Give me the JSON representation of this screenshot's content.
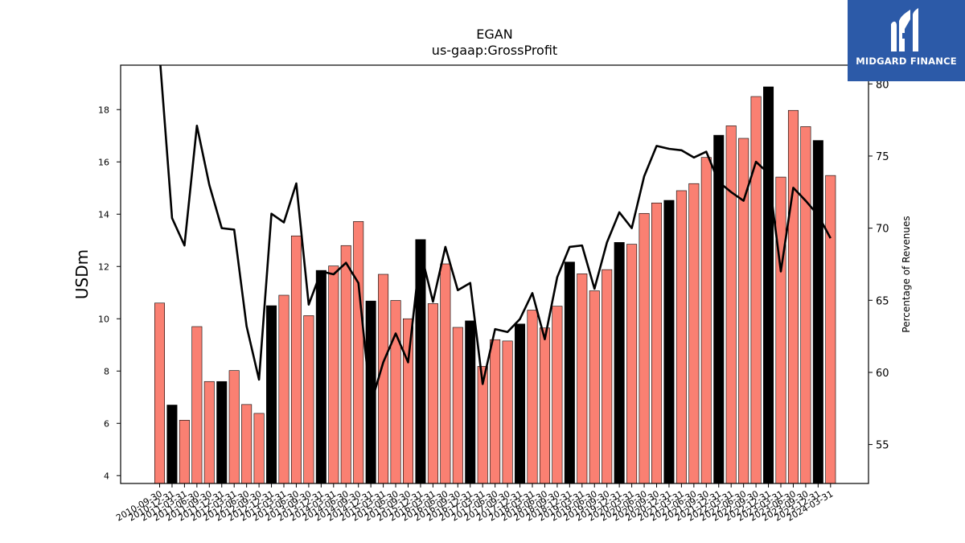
{
  "brand": {
    "name": "MIDGARD FINANCE",
    "icon": "midgard-m-logo-icon",
    "color": "#2c5aa8"
  },
  "chart_data": {
    "type": "bar",
    "title": "EGAN",
    "subtitle": "us-gaap:GrossProfit",
    "ylabel": "USDm",
    "y2label": "Percentage of Revenues",
    "ylim": [
      3.7,
      19.7
    ],
    "y2lim": [
      52.3,
      81.3
    ],
    "yticks": [
      4,
      6,
      8,
      10,
      12,
      14,
      16,
      18
    ],
    "y2ticks": [
      55,
      60,
      65,
      70,
      75,
      80
    ],
    "colors": {
      "quarter": "#fa8072",
      "year_end": "#000000",
      "line": "#000000"
    },
    "categories": [
      "2010-09-30",
      "2010-12-31",
      "2011-03-31",
      "2011-06-30",
      "2011-09-30",
      "2011-12-31",
      "2012-03-31",
      "2012-06-30",
      "2012-09-30",
      "2012-12-31",
      "2013-03-31",
      "2013-06-30",
      "2013-09-30",
      "2013-12-31",
      "2014-03-31",
      "2014-06-30",
      "2014-09-30",
      "2014-12-31",
      "2015-03-31",
      "2015-06-30",
      "2015-09-30",
      "2015-12-31",
      "2016-03-31",
      "2016-06-30",
      "2016-09-30",
      "2016-12-31",
      "2017-03-31",
      "2017-06-30",
      "2017-09-30",
      "2017-12-31",
      "2018-03-31",
      "2018-06-30",
      "2018-09-30",
      "2018-12-31",
      "2019-03-31",
      "2019-06-30",
      "2019-09-30",
      "2019-12-31",
      "2020-03-31",
      "2020-06-30",
      "2020-09-30",
      "2020-12-31",
      "2021-03-31",
      "2021-06-30",
      "2021-09-30",
      "2021-12-31",
      "2022-03-31",
      "2022-06-30",
      "2022-09-30",
      "2022-12-31",
      "2023-03-31",
      "2023-06-30",
      "2023-09-30",
      "2023-12-31",
      "2024-03-31"
    ],
    "year_end": [
      false,
      true,
      false,
      false,
      false,
      true,
      false,
      false,
      false,
      true,
      false,
      false,
      false,
      true,
      false,
      false,
      false,
      true,
      false,
      false,
      false,
      true,
      false,
      false,
      false,
      true,
      false,
      false,
      false,
      true,
      false,
      false,
      false,
      true,
      false,
      false,
      false,
      true,
      false,
      false,
      false,
      true,
      false,
      false,
      false,
      true,
      false,
      false,
      false,
      true,
      false,
      false,
      false,
      true,
      false
    ],
    "series": [
      {
        "name": "",
        "values": [
          10.6,
          6.7,
          6.12,
          9.7,
          7.6,
          7.6,
          8.02,
          6.72,
          6.38,
          10.5,
          10.9,
          13.17,
          10.12,
          11.85,
          12.02,
          12.8,
          13.72,
          10.68,
          11.7,
          10.7,
          10.0,
          13.03,
          10.58,
          12.1,
          9.67,
          9.92,
          8.18,
          9.2,
          9.15,
          9.8,
          10.33,
          9.65,
          10.48,
          12.17,
          11.72,
          11.07,
          11.88,
          12.92,
          12.85,
          14.03,
          14.43,
          14.53,
          14.9,
          15.17,
          16.17,
          17.02,
          17.38,
          16.9,
          18.5,
          18.87,
          15.42,
          17.97,
          17.35,
          16.82,
          15.48
        ]
      },
      {
        "name": "",
        "values": [
          82.0,
          70.7,
          68.8,
          77.1,
          73.0,
          70.0,
          69.9,
          63.2,
          59.5,
          71.0,
          70.4,
          73.1,
          64.7,
          67.0,
          66.8,
          67.6,
          66.2,
          57.8,
          60.7,
          62.7,
          60.7,
          68.4,
          64.9,
          68.7,
          65.7,
          66.2,
          59.2,
          63.0,
          62.8,
          63.7,
          65.5,
          62.3,
          66.6,
          68.7,
          68.8,
          65.8,
          69.0,
          71.1,
          70.0,
          73.6,
          75.7,
          75.5,
          75.4,
          74.9,
          75.3,
          73.2,
          72.5,
          71.9,
          74.6,
          73.8,
          67.0,
          72.8,
          71.9,
          70.9,
          69.3
        ]
      }
    ]
  }
}
